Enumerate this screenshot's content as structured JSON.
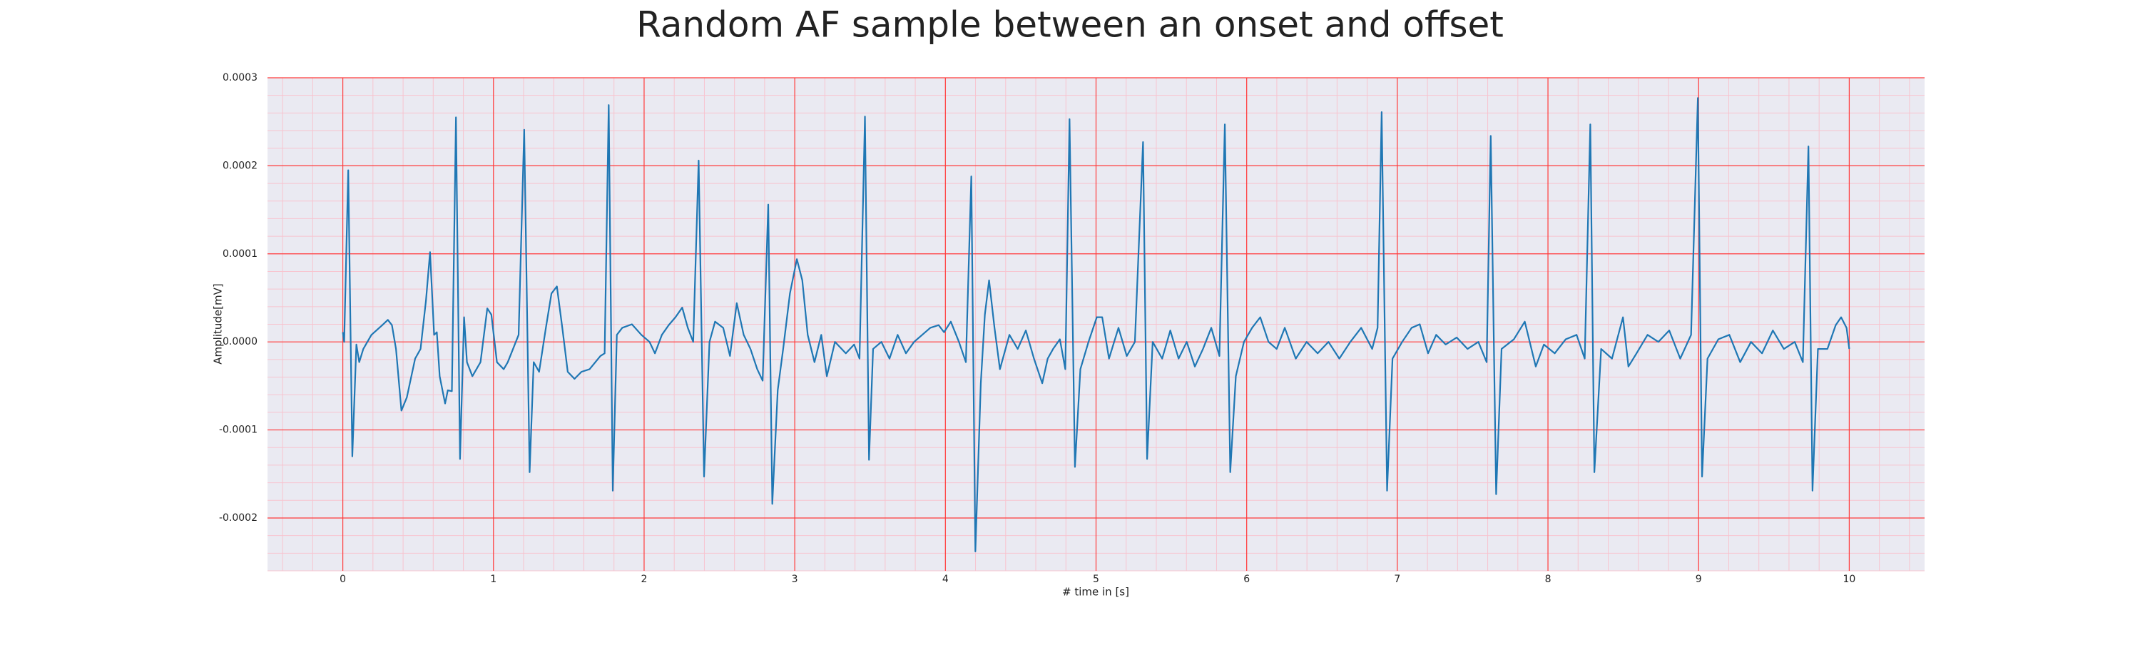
{
  "chart_data": {
    "type": "line",
    "title": "Random AF sample between an onset and offset",
    "x_label": "# time in [s]",
    "y_label": "Amplitude[mV]",
    "xlim": [
      -0.5,
      10.5
    ],
    "ylim": [
      -0.00026,
      0.0003
    ],
    "xticks": [
      0,
      1,
      2,
      3,
      4,
      5,
      6,
      7,
      8,
      9,
      10
    ],
    "yticks": [
      {
        "value": -0.0002,
        "label": "-0.0002"
      },
      {
        "value": -0.0001,
        "label": "-0.0001"
      },
      {
        "value": 0,
        "label": "0.0000"
      },
      {
        "value": 0.0001,
        "label": "0.0001"
      },
      {
        "value": 0.0002,
        "label": "0.0002"
      },
      {
        "value": 0.0003,
        "label": "0.0003"
      }
    ],
    "grid": true,
    "grid_color": "#ff3b3b",
    "minor_grid": true,
    "minor_grid_color": "#f7c4cf",
    "background": "#eaeaf2",
    "x": [
      0,
      0.009,
      0.036,
      0.063,
      0.09,
      0.109,
      0.136,
      0.19,
      0.262,
      0.299,
      0.326,
      0.353,
      0.389,
      0.425,
      0.48,
      0.516,
      0.552,
      0.579,
      0.606,
      0.624,
      0.643,
      0.679,
      0.697,
      0.724,
      0.751,
      0.778,
      0.805,
      0.824,
      0.86,
      0.914,
      0.959,
      0.986,
      1.023,
      1.068,
      1.095,
      1.167,
      1.204,
      1.24,
      1.267,
      1.303,
      1.348,
      1.385,
      1.421,
      1.457,
      1.493,
      1.538,
      1.584,
      1.638,
      1.71,
      1.738,
      1.765,
      1.792,
      1.819,
      1.855,
      1.919,
      1.982,
      2.036,
      2.072,
      2.118,
      2.163,
      2.208,
      2.253,
      2.29,
      2.326,
      2.362,
      2.398,
      2.434,
      2.471,
      2.525,
      2.57,
      2.615,
      2.661,
      2.706,
      2.751,
      2.787,
      2.824,
      2.851,
      2.887,
      2.923,
      2.968,
      3.014,
      3.05,
      3.086,
      3.131,
      3.176,
      3.213,
      3.267,
      3.339,
      3.394,
      3.43,
      3.466,
      3.493,
      3.52,
      3.575,
      3.629,
      3.683,
      3.738,
      3.792,
      3.846,
      3.9,
      3.955,
      3.991,
      4.036,
      4.09,
      4.136,
      4.172,
      4.199,
      4.235,
      4.262,
      4.29,
      4.326,
      4.362,
      4.425,
      4.48,
      4.534,
      4.588,
      4.643,
      4.679,
      4.715,
      4.76,
      4.796,
      4.824,
      4.86,
      4.896,
      4.95,
      5.005,
      5.041,
      5.086,
      5.149,
      5.204,
      5.258,
      5.312,
      5.339,
      5.376,
      5.439,
      5.493,
      5.548,
      5.602,
      5.656,
      5.71,
      5.765,
      5.819,
      5.855,
      5.891,
      5.928,
      5.982,
      6.036,
      6.09,
      6.145,
      6.199,
      6.253,
      6.326,
      6.398,
      6.471,
      6.543,
      6.615,
      6.688,
      6.76,
      6.833,
      6.869,
      6.896,
      6.932,
      6.968,
      7.032,
      7.095,
      7.149,
      7.204,
      7.258,
      7.321,
      7.394,
      7.466,
      7.538,
      7.593,
      7.62,
      7.656,
      7.692,
      7.774,
      7.846,
      7.919,
      7.973,
      8.045,
      8.118,
      8.19,
      8.244,
      8.281,
      8.308,
      8.353,
      8.425,
      8.498,
      8.534,
      8.588,
      8.661,
      8.733,
      8.805,
      8.878,
      8.95,
      8.995,
      9.023,
      9.059,
      9.131,
      9.204,
      9.276,
      9.348,
      9.421,
      9.493,
      9.566,
      9.638,
      9.692,
      9.729,
      9.756,
      9.792,
      9.855,
      9.91,
      9.946,
      9.982,
      10.0
    ],
    "series": [
      {
        "color": "#1f77b4",
        "values": [
          1.1e-05,
          0,
          0.000195,
          -0.00013,
          -3e-06,
          -2.3e-05,
          -8e-06,
          8e-06,
          1.9e-05,
          2.5e-05,
          1.9e-05,
          -8e-06,
          -7.8e-05,
          -6.3e-05,
          -1.9e-05,
          -8e-06,
          4.7e-05,
          0.000102,
          8e-06,
          1.1e-05,
          -3.9e-05,
          -7e-05,
          -5.5e-05,
          -5.6e-05,
          0.000255,
          -0.000133,
          2.8e-05,
          -2.3e-05,
          -3.9e-05,
          -2.3e-05,
          3.8e-05,
          3.1e-05,
          -2.3e-05,
          -3.1e-05,
          -2.3e-05,
          8e-06,
          0.000241,
          -0.000148,
          -2.3e-05,
          -3.4e-05,
          1.6e-05,
          5.5e-05,
          6.3e-05,
          1.6e-05,
          -3.4e-05,
          -4.2e-05,
          -3.4e-05,
          -3.1e-05,
          -1.6e-05,
          -1.3e-05,
          0.000269,
          -0.000169,
          8e-06,
          1.6e-05,
          2e-05,
          8e-06,
          0,
          -1.3e-05,
          8e-06,
          1.9e-05,
          2.8e-05,
          3.9e-05,
          1.6e-05,
          0,
          0.000206,
          -0.000153,
          0,
          2.3e-05,
          1.6e-05,
          -1.6e-05,
          4.4e-05,
          8e-06,
          -8e-06,
          -3.1e-05,
          -4.4e-05,
          0.000156,
          -0.000184,
          -5.5e-05,
          -8e-06,
          5.5e-05,
          9.4e-05,
          7e-05,
          8e-06,
          -2.3e-05,
          8e-06,
          -3.9e-05,
          0,
          -1.3e-05,
          -3e-06,
          -1.9e-05,
          0.000256,
          -0.000134,
          -8e-06,
          0,
          -1.9e-05,
          8e-06,
          -1.3e-05,
          0,
          8e-06,
          1.6e-05,
          1.9e-05,
          1.1e-05,
          2.3e-05,
          0,
          -2.3e-05,
          0.000188,
          -0.000238,
          -4.7e-05,
          3.1e-05,
          7e-05,
          1.6e-05,
          -3.1e-05,
          8e-06,
          -8e-06,
          1.3e-05,
          -1.9e-05,
          -4.7e-05,
          -1.9e-05,
          -8e-06,
          3e-06,
          -3.1e-05,
          0.000253,
          -0.000142,
          -3.1e-05,
          0,
          2.8e-05,
          2.8e-05,
          -1.9e-05,
          1.6e-05,
          -1.6e-05,
          0,
          0.000227,
          -0.000133,
          0,
          -1.9e-05,
          1.3e-05,
          -1.9e-05,
          0,
          -2.8e-05,
          -8e-06,
          1.6e-05,
          -1.6e-05,
          0.000247,
          -0.000148,
          -3.9e-05,
          0,
          1.6e-05,
          2.8e-05,
          0,
          -8e-06,
          1.6e-05,
          -1.9e-05,
          0,
          -1.3e-05,
          0,
          -1.9e-05,
          0,
          1.6e-05,
          -8e-06,
          1.6e-05,
          0.000261,
          -0.000169,
          -1.9e-05,
          0,
          1.6e-05,
          2e-05,
          -1.3e-05,
          8e-06,
          -3e-06,
          5e-06,
          -8e-06,
          0,
          -2.3e-05,
          0.000234,
          -0.000173,
          -8e-06,
          3e-06,
          2.3e-05,
          -2.8e-05,
          -3e-06,
          -1.3e-05,
          3e-06,
          8e-06,
          -1.9e-05,
          0.000247,
          -0.000148,
          -8e-06,
          -1.9e-05,
          2.8e-05,
          -2.8e-05,
          -1.3e-05,
          8e-06,
          0,
          1.3e-05,
          -1.9e-05,
          8e-06,
          0.000277,
          -0.000153,
          -1.9e-05,
          3e-06,
          8e-06,
          -2.3e-05,
          0,
          -1.3e-05,
          1.3e-05,
          -8e-06,
          0,
          -2.3e-05,
          0.000222,
          -0.000169,
          -8e-06,
          -8e-06,
          1.9e-05,
          2.8e-05,
          1.6e-05,
          -8e-06
        ]
      }
    ]
  }
}
